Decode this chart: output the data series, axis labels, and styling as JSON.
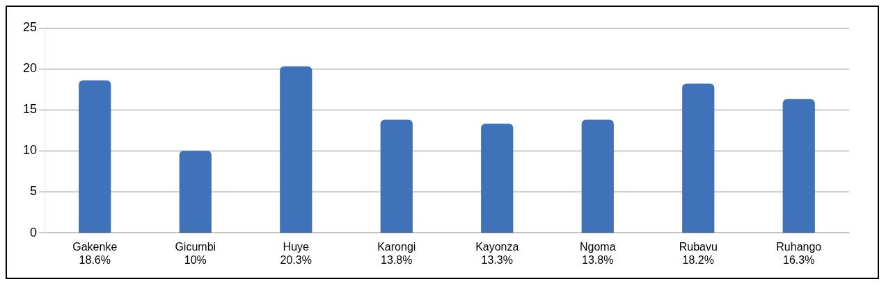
{
  "chart_data": {
    "type": "bar",
    "categories": [
      "Gakenke\n18.6%",
      "Gicumbi\n10%",
      "Huye\n20.3%",
      "Karongi\n13.8%",
      "Kayonza\n13.3%",
      "Ngoma\n13.8%",
      "Rubavu\n18.2%",
      "Ruhango\n16.3%"
    ],
    "values": [
      18.6,
      10,
      20.3,
      13.8,
      13.3,
      13.8,
      18.2,
      16.3
    ],
    "color": "#3f72b8",
    "ylim": [
      0,
      25
    ],
    "yticks": [
      0,
      5,
      10,
      15,
      20,
      25
    ],
    "grid": "y",
    "legend": false
  }
}
